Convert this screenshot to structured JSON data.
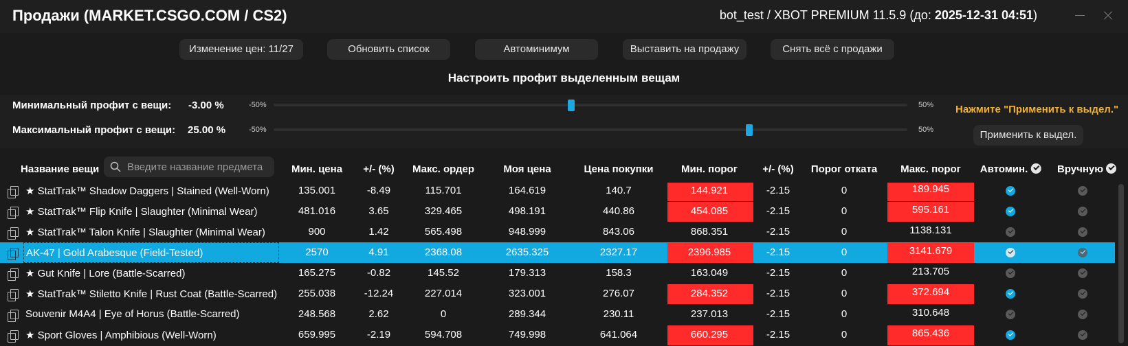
{
  "window": {
    "title": "Продажи (MARKET.CSGO.COM / CS2)",
    "bot_prefix": "bot_test / XBOT PREMIUM 11.5.9",
    "expiry_label": "(до:",
    "expiry_date": "2025-12-31 04:51",
    "expiry_suffix": ")"
  },
  "toolbar": {
    "price_change": "Изменение цен: 11/27",
    "refresh": "Обновить список",
    "autominimum": "Автоминимум",
    "put_on_sale": "Выставить на продажу",
    "remove_all": "Снять всё с продажи"
  },
  "profit": {
    "title": "Настроить профит выделенным вещам",
    "min_label": "Минимальный профит с вещи:",
    "min_value": "-3.00",
    "max_label": "Максимальный профит с вещи:",
    "max_value": "25.00",
    "percent": "%",
    "range_min": "-50%",
    "range_max": "50%",
    "slider_min_percent": -3,
    "slider_max_percent": 25,
    "hint": "Нажмите \"Применить к выдел.\"",
    "apply": "Применить к выдел."
  },
  "search": {
    "placeholder": "Введите название предмета"
  },
  "columns": {
    "name": "Название вещи",
    "min_price": "Мин. цена",
    "delta1": "+/- (%)",
    "max_order": "Макс. ордер",
    "my_price": "Моя цена",
    "buy_price": "Цена покупки",
    "min_threshold": "Мин. порог",
    "delta2": "+/- (%)",
    "rollback": "Порог отката",
    "max_threshold": "Макс. порог",
    "automin": "Автомин.",
    "manual": "Вручную"
  },
  "colors": {
    "accent": "#12a8e0",
    "warn_red": "#ff2a2a",
    "hint_yellow": "#f2b134"
  },
  "rows": [
    {
      "name": "★ StatTrak™ Shadow Daggers | Stained (Well-Worn)",
      "min_price": "135.001",
      "delta1": "-8.49",
      "max_order": "115.701",
      "my_price": "164.619",
      "buy_price": "140.7",
      "min_threshold": "144.921",
      "min_red": true,
      "delta2": "-2.15",
      "rollback": "0",
      "max_threshold": "189.945",
      "max_red": true,
      "automin": true,
      "manual": false,
      "selected": false
    },
    {
      "name": "★ StatTrak™ Flip Knife | Slaughter (Minimal Wear)",
      "min_price": "481.016",
      "delta1": "3.65",
      "max_order": "329.465",
      "my_price": "498.191",
      "buy_price": "440.86",
      "min_threshold": "454.085",
      "min_red": true,
      "delta2": "-2.15",
      "rollback": "0",
      "max_threshold": "595.161",
      "max_red": true,
      "automin": true,
      "manual": false,
      "selected": false
    },
    {
      "name": "★ StatTrak™ Talon Knife | Slaughter (Minimal Wear)",
      "min_price": "900",
      "delta1": "1.42",
      "max_order": "565.498",
      "my_price": "948.999",
      "buy_price": "843.06",
      "min_threshold": "868.351",
      "min_red": false,
      "delta2": "-2.15",
      "rollback": "0",
      "max_threshold": "1138.131",
      "max_red": false,
      "automin": false,
      "manual": false,
      "selected": false
    },
    {
      "name": "AK-47 | Gold Arabesque (Field-Tested)",
      "min_price": "2570",
      "delta1": "4.91",
      "max_order": "2368.08",
      "my_price": "2635.325",
      "buy_price": "2327.17",
      "min_threshold": "2396.985",
      "min_red": true,
      "delta2": "-2.15",
      "rollback": "0",
      "max_threshold": "3141.679",
      "max_red": true,
      "automin": true,
      "manual": false,
      "selected": true
    },
    {
      "name": "★ Gut Knife | Lore (Battle-Scarred)",
      "min_price": "165.275",
      "delta1": "-0.82",
      "max_order": "145.52",
      "my_price": "179.313",
      "buy_price": "158.3",
      "min_threshold": "163.049",
      "min_red": false,
      "delta2": "-2.15",
      "rollback": "0",
      "max_threshold": "213.705",
      "max_red": false,
      "automin": false,
      "manual": false,
      "selected": false
    },
    {
      "name": "★ StatTrak™ Stiletto Knife | Rust Coat (Battle-Scarred)",
      "min_price": "255.038",
      "delta1": "-12.24",
      "max_order": "227.014",
      "my_price": "323.001",
      "buy_price": "276.07",
      "min_threshold": "284.352",
      "min_red": true,
      "delta2": "-2.15",
      "rollback": "0",
      "max_threshold": "372.694",
      "max_red": true,
      "automin": true,
      "manual": false,
      "selected": false
    },
    {
      "name": "Souvenir M4A4 | Eye of Horus (Battle-Scarred)",
      "min_price": "248.568",
      "delta1": "2.62",
      "max_order": "0",
      "my_price": "289.344",
      "buy_price": "230.11",
      "min_threshold": "237.013",
      "min_red": false,
      "delta2": "-2.15",
      "rollback": "0",
      "max_threshold": "310.648",
      "max_red": false,
      "automin": false,
      "manual": false,
      "selected": false
    },
    {
      "name": "★ Sport Gloves | Amphibious (Well-Worn)",
      "min_price": "659.995",
      "delta1": "-2.19",
      "max_order": "594.708",
      "my_price": "749.998",
      "buy_price": "641.064",
      "min_threshold": "660.295",
      "min_red": true,
      "delta2": "-2.15",
      "rollback": "0",
      "max_threshold": "865.436",
      "max_red": true,
      "automin": true,
      "manual": false,
      "selected": false
    }
  ]
}
